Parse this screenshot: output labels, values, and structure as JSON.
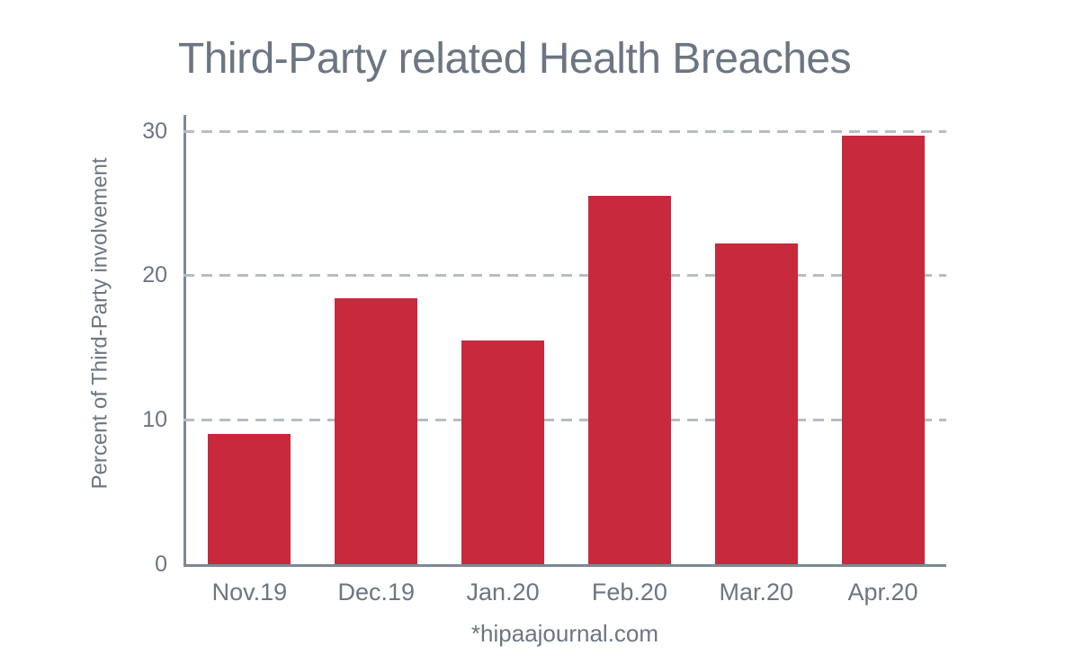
{
  "chart_data": {
    "type": "bar",
    "title": "Third-Party related Health Breaches",
    "categories": [
      "Nov.19",
      "Dec.19",
      "Jan.20",
      "Feb.20",
      "Mar.20",
      "Apr.20"
    ],
    "values": [
      9.0,
      18.4,
      15.5,
      25.5,
      22.2,
      29.7
    ],
    "xlabel": "",
    "ylabel": "Percent of Third-Party involvement",
    "yticks": [
      0,
      10,
      20,
      30
    ],
    "ylim": [
      0,
      31.1
    ],
    "grid": "horizontal-dashed",
    "legend_position": "none",
    "source_note": "*hipaajournal.com",
    "colors": {
      "bar": "#c8293c",
      "text": "#6b7682",
      "gridline": "#b6bcc3",
      "axis": "#7d8892",
      "background": "#ffffff"
    }
  }
}
